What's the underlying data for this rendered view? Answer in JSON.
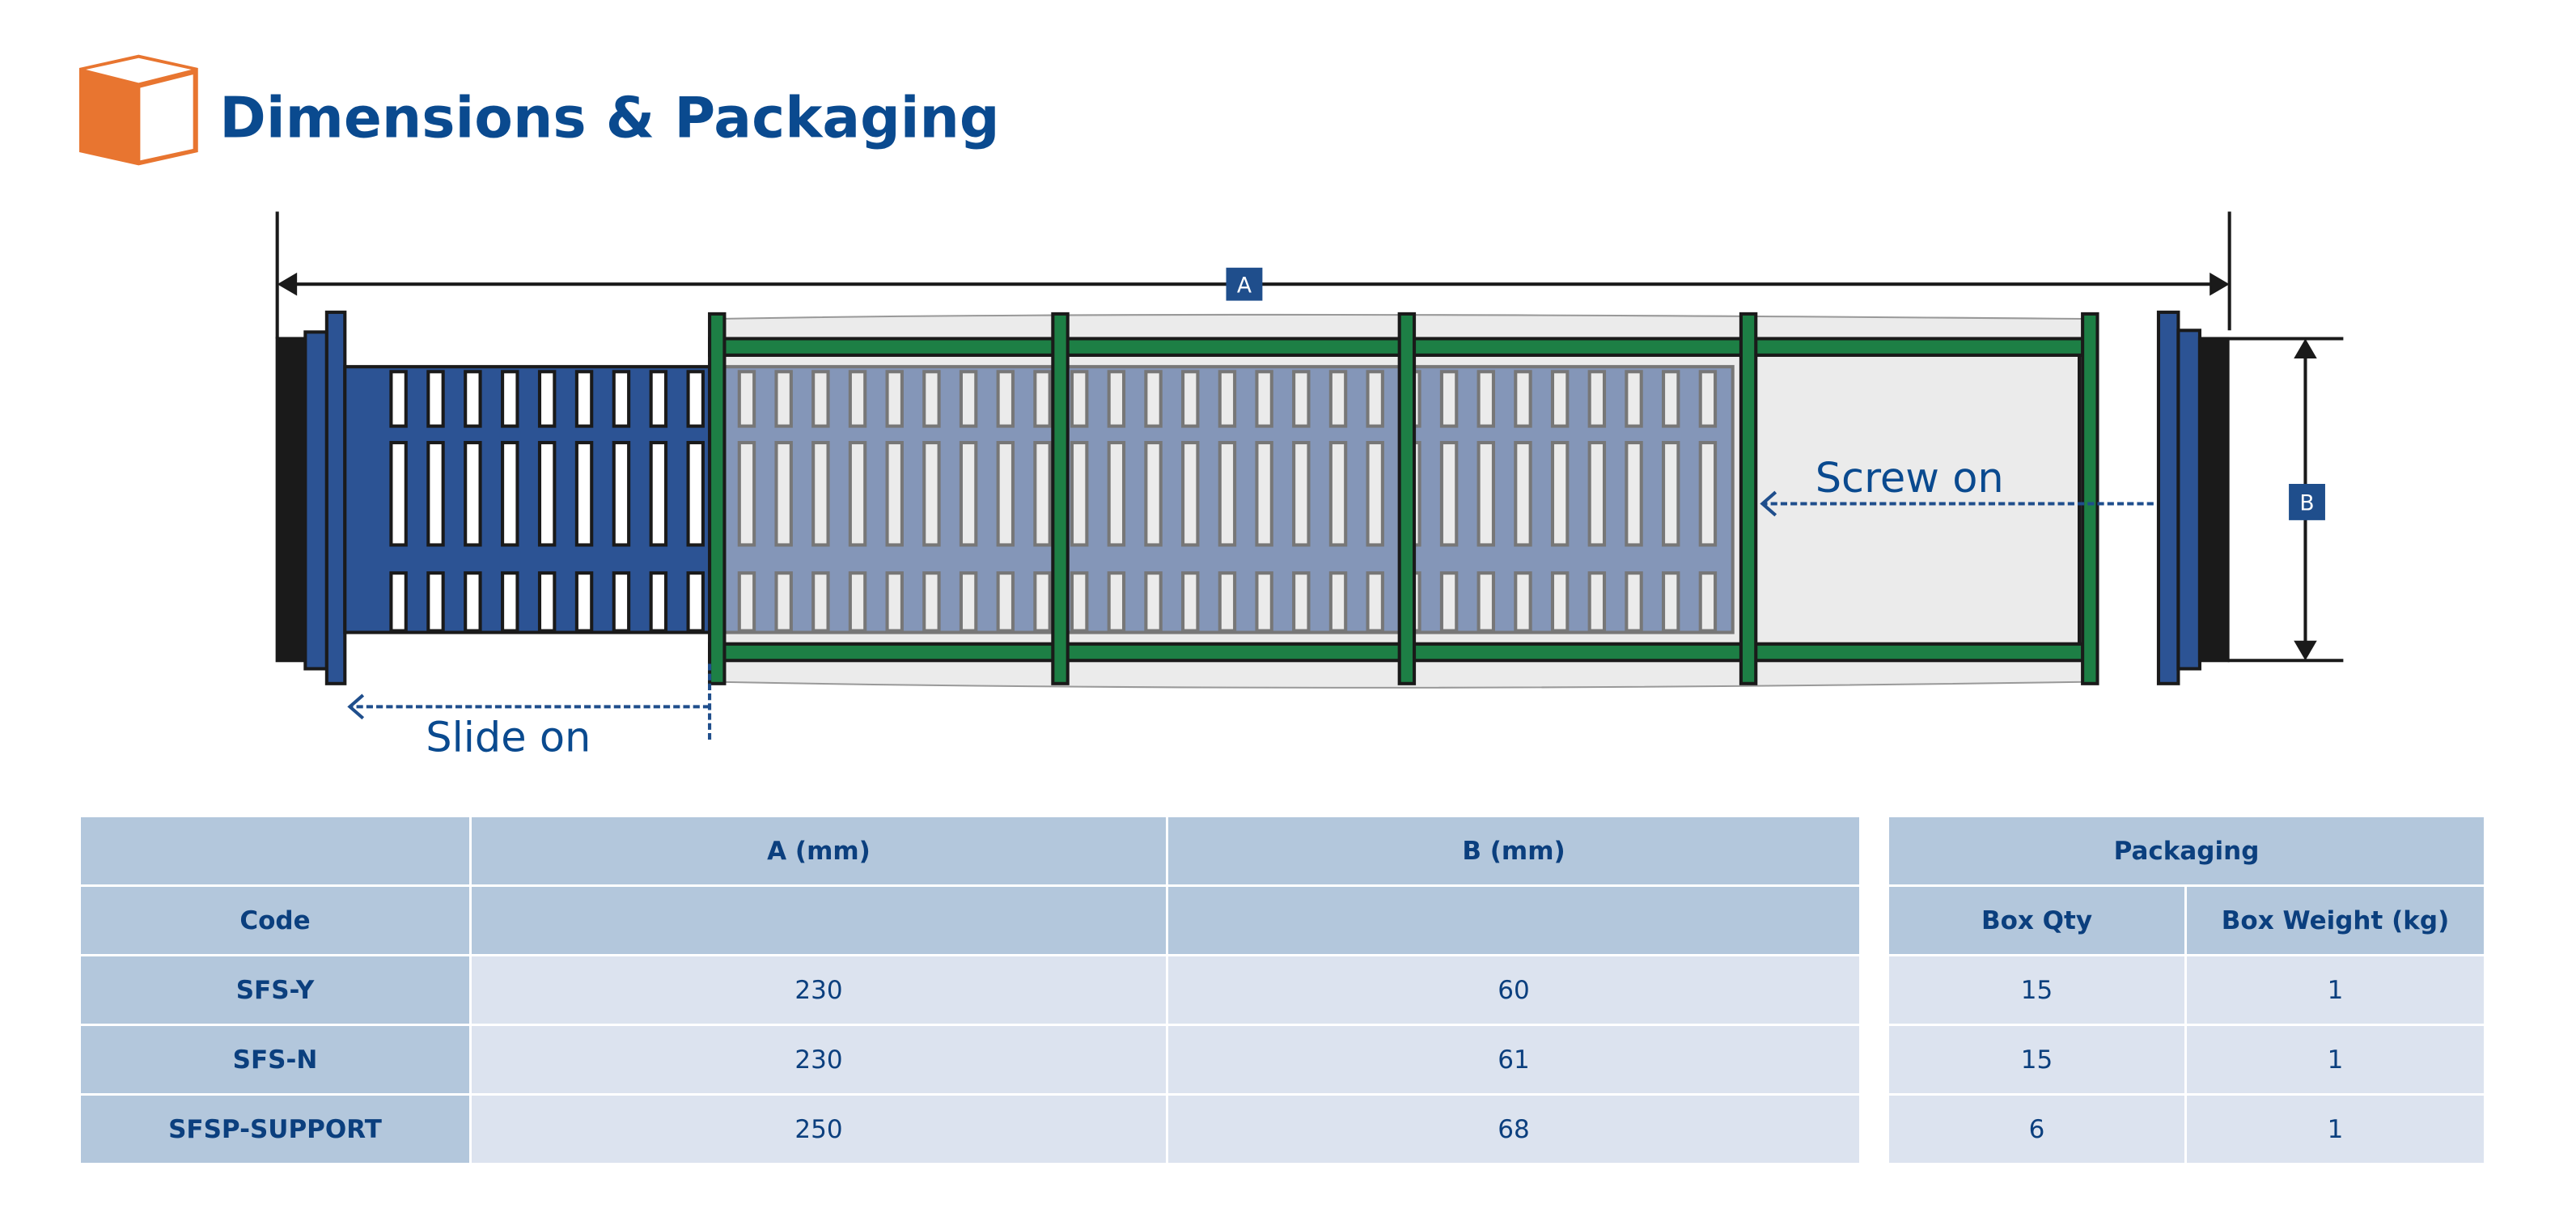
{
  "title": "Dimensions & Packaging",
  "icons": {
    "title_icon": "box-icon"
  },
  "colors": {
    "accent_orange": "#e87530",
    "title_blue": "#0a4a8f",
    "tube_blue": "#2c5394",
    "cage_green": "#1d7f45",
    "header_fill": "#b3c7dc",
    "cell_fill": "#dce3ef"
  },
  "diagram": {
    "label_a": "A",
    "label_b": "B",
    "screw_on": "Screw on",
    "slide_on": "Slide on"
  },
  "dimensions_table": {
    "headers": [
      "",
      "A (mm)",
      "B (mm)"
    ],
    "subheaders": [
      "Code",
      "",
      ""
    ],
    "rows": [
      [
        "SFS-Y",
        "230",
        "60"
      ],
      [
        "SFS-N",
        "230",
        "61"
      ],
      [
        "SFSP-SUPPORT",
        "250",
        "68"
      ]
    ]
  },
  "packaging_table": {
    "header": "Packaging",
    "subheaders": [
      "Box Qty",
      "Box Weight (kg)"
    ],
    "rows": [
      [
        "15",
        "1"
      ],
      [
        "15",
        "1"
      ],
      [
        "6",
        "1"
      ]
    ]
  }
}
